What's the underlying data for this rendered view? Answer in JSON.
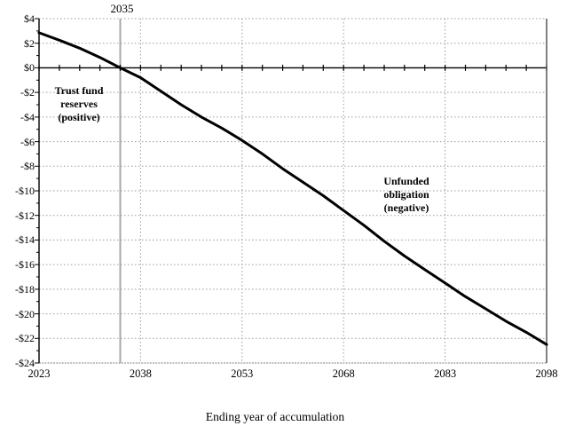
{
  "chart_data": {
    "type": "line",
    "title": "",
    "xlabel": "Ending year of accumulation",
    "ylabel": "",
    "xlim": [
      2023,
      2098
    ],
    "ylim": [
      -24,
      4
    ],
    "grid": "dotted",
    "legend": "none",
    "x_major_ticks": [
      {
        "value": 2023,
        "label": "2023"
      },
      {
        "value": 2038,
        "label": "2038"
      },
      {
        "value": 2053,
        "label": "2053"
      },
      {
        "value": 2068,
        "label": "2068"
      },
      {
        "value": 2083,
        "label": "2083"
      },
      {
        "value": 2098,
        "label": "2098"
      }
    ],
    "x_minor_tick_step_years": 3,
    "y_major_ticks": [
      {
        "value": 4,
        "label": "$4"
      },
      {
        "value": 2,
        "label": "$2"
      },
      {
        "value": 0,
        "label": "$0"
      },
      {
        "value": -2,
        "label": "-$2"
      },
      {
        "value": -4,
        "label": "-$4"
      },
      {
        "value": -6,
        "label": "-$6"
      },
      {
        "value": -8,
        "label": "-$8"
      },
      {
        "value": -10,
        "label": "-$10"
      },
      {
        "value": -12,
        "label": "-$12"
      },
      {
        "value": -14,
        "label": "-$14"
      },
      {
        "value": -16,
        "label": "-$16"
      },
      {
        "value": -18,
        "label": "-$18"
      },
      {
        "value": -20,
        "label": "-$20"
      },
      {
        "value": -22,
        "label": "-$22"
      },
      {
        "value": -24,
        "label": "-$24"
      }
    ],
    "y_minor_tick_step": 1,
    "depletion_year": 2035,
    "depletion_year_label": "2035",
    "series": [
      {
        "x": [
          2023,
          2026,
          2029,
          2032,
          2035,
          2038,
          2041,
          2044,
          2047,
          2050,
          2053,
          2056,
          2059,
          2062,
          2065,
          2068,
          2071,
          2074,
          2077,
          2080,
          2083,
          2086,
          2089,
          2092,
          2095,
          2098
        ],
        "y": [
          2.85,
          2.25,
          1.6,
          0.85,
          0,
          -0.8,
          -1.9,
          -3.0,
          -4.0,
          -4.9,
          -5.9,
          -7.0,
          -8.2,
          -9.3,
          -10.4,
          -11.6,
          -12.8,
          -14.1,
          -15.3,
          -16.4,
          -17.5,
          -18.6,
          -19.6,
          -20.6,
          -21.5,
          -22.5
        ]
      }
    ],
    "annotations": [
      {
        "id": "trust-fund-reserves",
        "text": "Trust fund\nreserves\n(positive)"
      },
      {
        "id": "unfunded-obligation",
        "text": "Unfunded\nobligation\n(negative)"
      }
    ]
  },
  "colors": {
    "background": "#ffffff",
    "line": "#000000",
    "grid": "#9b9b9b",
    "zero_axis": "#000000",
    "y_axis": "#000000",
    "ticks": "#000000",
    "depletion_line": "#a8a8a8",
    "frame_right": "#4a4a4a",
    "frame_bottom": "#aaaaaa",
    "text": "#000000"
  }
}
